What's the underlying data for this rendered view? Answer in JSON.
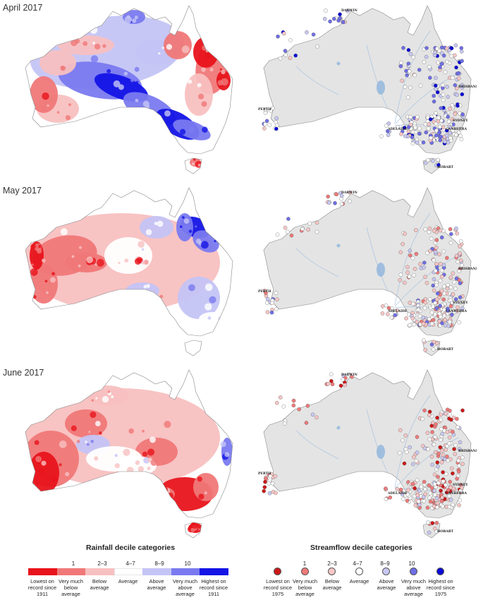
{
  "panels": [
    {
      "month": "April 2017"
    },
    {
      "month": "May 2017"
    },
    {
      "month": "June 2017"
    }
  ],
  "city_labels": [
    "DARWIN",
    "PERTH",
    "ADELAIDE",
    "BRISBANE",
    "SYDNEY",
    "CANBERRA",
    "HOBART"
  ],
  "rainfall_legend": {
    "title": "Rainfall decile categories",
    "decile_labels": [
      "1",
      "2–3",
      "4–7",
      "8–9",
      "10"
    ],
    "categories": [
      {
        "label": "Lowest on record since 1911",
        "color": "#e8141c"
      },
      {
        "label": "Very much below average",
        "color": "#f07878"
      },
      {
        "label": "Below average",
        "color": "#f8c0c0"
      },
      {
        "label": "Average",
        "color": "#ffffff"
      },
      {
        "label": "Above average",
        "color": "#c4c4f6"
      },
      {
        "label": "Very much above average",
        "color": "#7a7af0"
      },
      {
        "label": "Highest on record since 1911",
        "color": "#1414e6"
      }
    ]
  },
  "streamflow_legend": {
    "title": "Streamflow decile categories",
    "decile_labels": [
      "1",
      "2–3",
      "4–7",
      "8–9",
      "10"
    ],
    "categories": [
      {
        "label": "Lowest on record since 1975",
        "color": "#cc1818"
      },
      {
        "label": "Very much below average",
        "color": "#ee7a7a"
      },
      {
        "label": "Below average",
        "color": "#f8c6c6"
      },
      {
        "label": "Average",
        "color": "#ffffff"
      },
      {
        "label": "Above average",
        "color": "#c8c8f2"
      },
      {
        "label": "Very much above average",
        "color": "#6e6ee6"
      },
      {
        "label": "Highest on record since 1975",
        "color": "#0a0ad6"
      }
    ]
  },
  "colors": {
    "streamflow_land": "#e4e4e4",
    "river": "#a8c4e0",
    "outline": "#888888"
  }
}
